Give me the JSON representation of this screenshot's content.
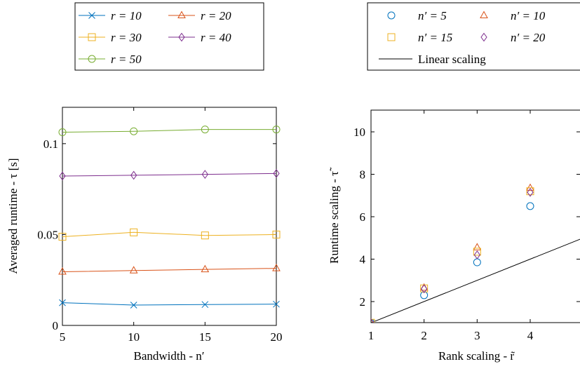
{
  "chart_data": [
    {
      "type": "line",
      "title": "",
      "xlabel": "Bandwidth - n′",
      "ylabel": "Averaged runtime - τ [s]",
      "xlim": [
        5,
        20
      ],
      "ylim": [
        0,
        0.12
      ],
      "xticks": [
        5,
        10,
        15,
        20
      ],
      "xtick_labels": [
        "5",
        "10",
        "15",
        "20"
      ],
      "yticks": [
        0,
        0.05,
        0.1
      ],
      "ytick_labels": [
        "0",
        "0.05",
        "0.1"
      ],
      "grid": false,
      "legend_position": "top, outside plot",
      "x": [
        5,
        10,
        15,
        20
      ],
      "series": [
        {
          "name": "r = 10",
          "legend_label": "r = 10",
          "color": "#0072bd",
          "marker": "cross",
          "values": [
            0.0125,
            0.0112,
            0.0115,
            0.0117
          ]
        },
        {
          "name": "r = 20",
          "legend_label": "r = 20",
          "color": "#d95319",
          "marker": "triangle",
          "values": [
            0.0295,
            0.0302,
            0.0308,
            0.0314
          ]
        },
        {
          "name": "r = 30",
          "legend_label": "r = 30",
          "color": "#edb120",
          "marker": "square",
          "values": [
            0.0488,
            0.0512,
            0.0495,
            0.05
          ]
        },
        {
          "name": "r = 40",
          "legend_label": "r = 40",
          "color": "#7e2f8e",
          "marker": "diamond",
          "values": [
            0.0822,
            0.0826,
            0.0831,
            0.0836
          ]
        },
        {
          "name": "r = 50",
          "legend_label": "r = 50",
          "color": "#77ac30",
          "marker": "circle",
          "values": [
            0.1063,
            0.1068,
            0.1078,
            0.1078
          ]
        }
      ]
    },
    {
      "type": "scatter",
      "title": "",
      "xlabel": "Rank scaling - r̃",
      "ylabel": "Runtime scaling - τ̃",
      "xlim": [
        1,
        5
      ],
      "ylim": [
        0.5,
        11
      ],
      "xticks": [
        1,
        2,
        3,
        4
      ],
      "xtick_labels": [
        "1",
        "2",
        "3",
        "4"
      ],
      "yticks": [
        2,
        4,
        6,
        8,
        10
      ],
      "ytick_labels": [
        "2",
        "4",
        "6",
        "8",
        "10"
      ],
      "grid": false,
      "legend_position": "top, outside plot",
      "x": [
        1,
        2,
        3,
        4
      ],
      "series": [
        {
          "name": "n′ = 5",
          "legend_label": "n′ = 5",
          "color": "#0072bd",
          "marker": "circle",
          "values": [
            1.0,
            2.3,
            3.85,
            6.5
          ]
        },
        {
          "name": "n′ = 10",
          "legend_label": "n′ = 10",
          "color": "#d95319",
          "marker": "triangle",
          "values": [
            1.0,
            2.65,
            4.55,
            7.35
          ]
        },
        {
          "name": "n′ = 15",
          "legend_label": "n′ = 15",
          "color": "#edb120",
          "marker": "square",
          "values": [
            1.0,
            2.62,
            4.35,
            7.2
          ]
        },
        {
          "name": "n′ = 20",
          "legend_label": "n′ = 20",
          "color": "#7e2f8e",
          "marker": "diamond",
          "values": [
            1.0,
            2.6,
            4.2,
            7.15
          ]
        }
      ],
      "reference_line": {
        "name": "Linear scaling",
        "legend_label": "Linear scaling",
        "color": "#000000",
        "x": [
          1,
          5
        ],
        "values": [
          1,
          5
        ]
      }
    }
  ]
}
